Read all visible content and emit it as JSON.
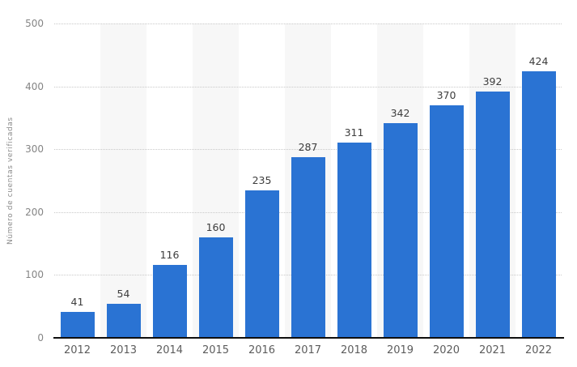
{
  "chart_data": {
    "type": "bar",
    "title": "",
    "xlabel": "",
    "ylabel": "Número de cuentas verificadas",
    "categories": [
      "2012",
      "2013",
      "2014",
      "2015",
      "2016",
      "2017",
      "2018",
      "2019",
      "2020",
      "2021",
      "2022"
    ],
    "values": [
      41,
      54,
      116,
      160,
      235,
      287,
      311,
      342,
      370,
      392,
      424
    ],
    "ylim": [
      0,
      500
    ],
    "ytick_step": 100,
    "yticks": [
      "0",
      "100",
      "200",
      "300",
      "400",
      "500"
    ],
    "grid": "horizontal-dotted",
    "legend": "none",
    "value_labels_shown": true,
    "colors": {
      "bar": "#2a73d3",
      "value_label": "#3d3d3d",
      "axis_tick_label": "#858585",
      "x_tick_label": "#5c5c5c",
      "y_axis_title": "#8c8c8c",
      "gridline": "#c9c9c9",
      "alt_column_band": "#f7f7f7",
      "axis_line": "#0f0f0f",
      "background": "#ffffff"
    }
  }
}
